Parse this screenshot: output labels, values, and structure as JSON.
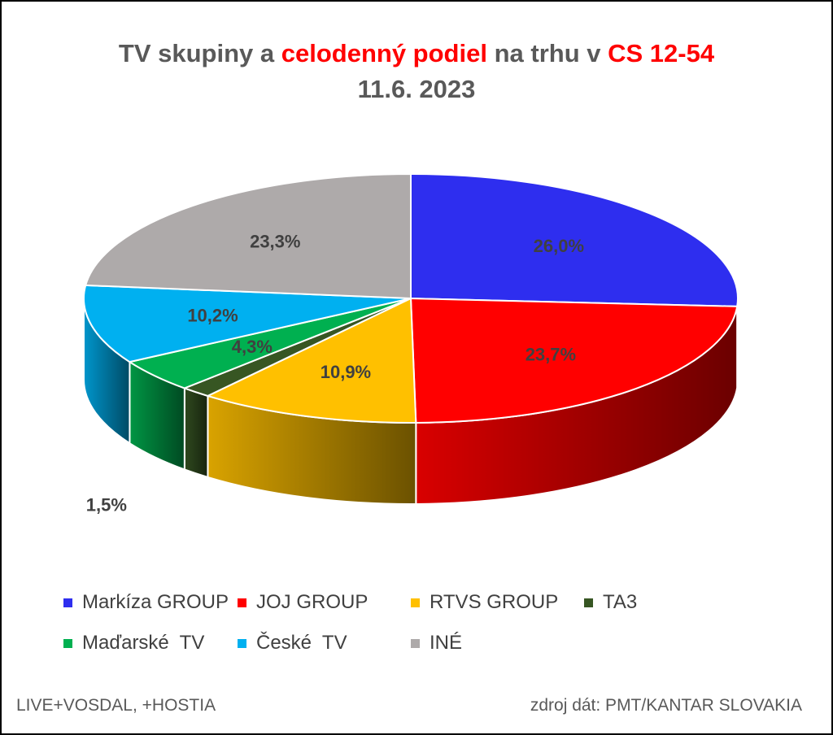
{
  "title": {
    "part1": "TV skupiny a ",
    "part2_highlight": "celodenný podiel",
    "part3": " na trhu v ",
    "part4_highlight": "CS 12-54",
    "line2": "11.6. 2023"
  },
  "chart_data": {
    "type": "pie",
    "style": "3d",
    "title": "TV skupiny a celodenný podiel na trhu v CS 12-54",
    "subtitle": "11.6. 2023",
    "slices": [
      {
        "name": "Markíza GROUP",
        "value": 26.0,
        "label": "26,0%",
        "color": "#2e2eef"
      },
      {
        "name": "JOJ GROUP",
        "value": 23.7,
        "label": "23,7%",
        "color": "#ff0000"
      },
      {
        "name": "RTVS GROUP",
        "value": 10.9,
        "label": "10,9%",
        "color": "#ffc000"
      },
      {
        "name": "TA3",
        "value": 1.5,
        "label": "1,5%",
        "color": "#375623"
      },
      {
        "name": "Maďarské  TV",
        "value": 4.3,
        "label": "4,3%",
        "color": "#00b050"
      },
      {
        "name": "České  TV",
        "value": 10.2,
        "label": "10,2%",
        "color": "#00b0f0"
      },
      {
        "name": "INÉ",
        "value": 23.3,
        "label": "23,3%",
        "color": "#aeaaaa"
      }
    ],
    "legend_position": "bottom"
  },
  "footer": {
    "left": "LIVE+VOSDAL, +HOSTIA",
    "right": "zdroj dát: PMT/KANTAR SLOVAKIA"
  }
}
